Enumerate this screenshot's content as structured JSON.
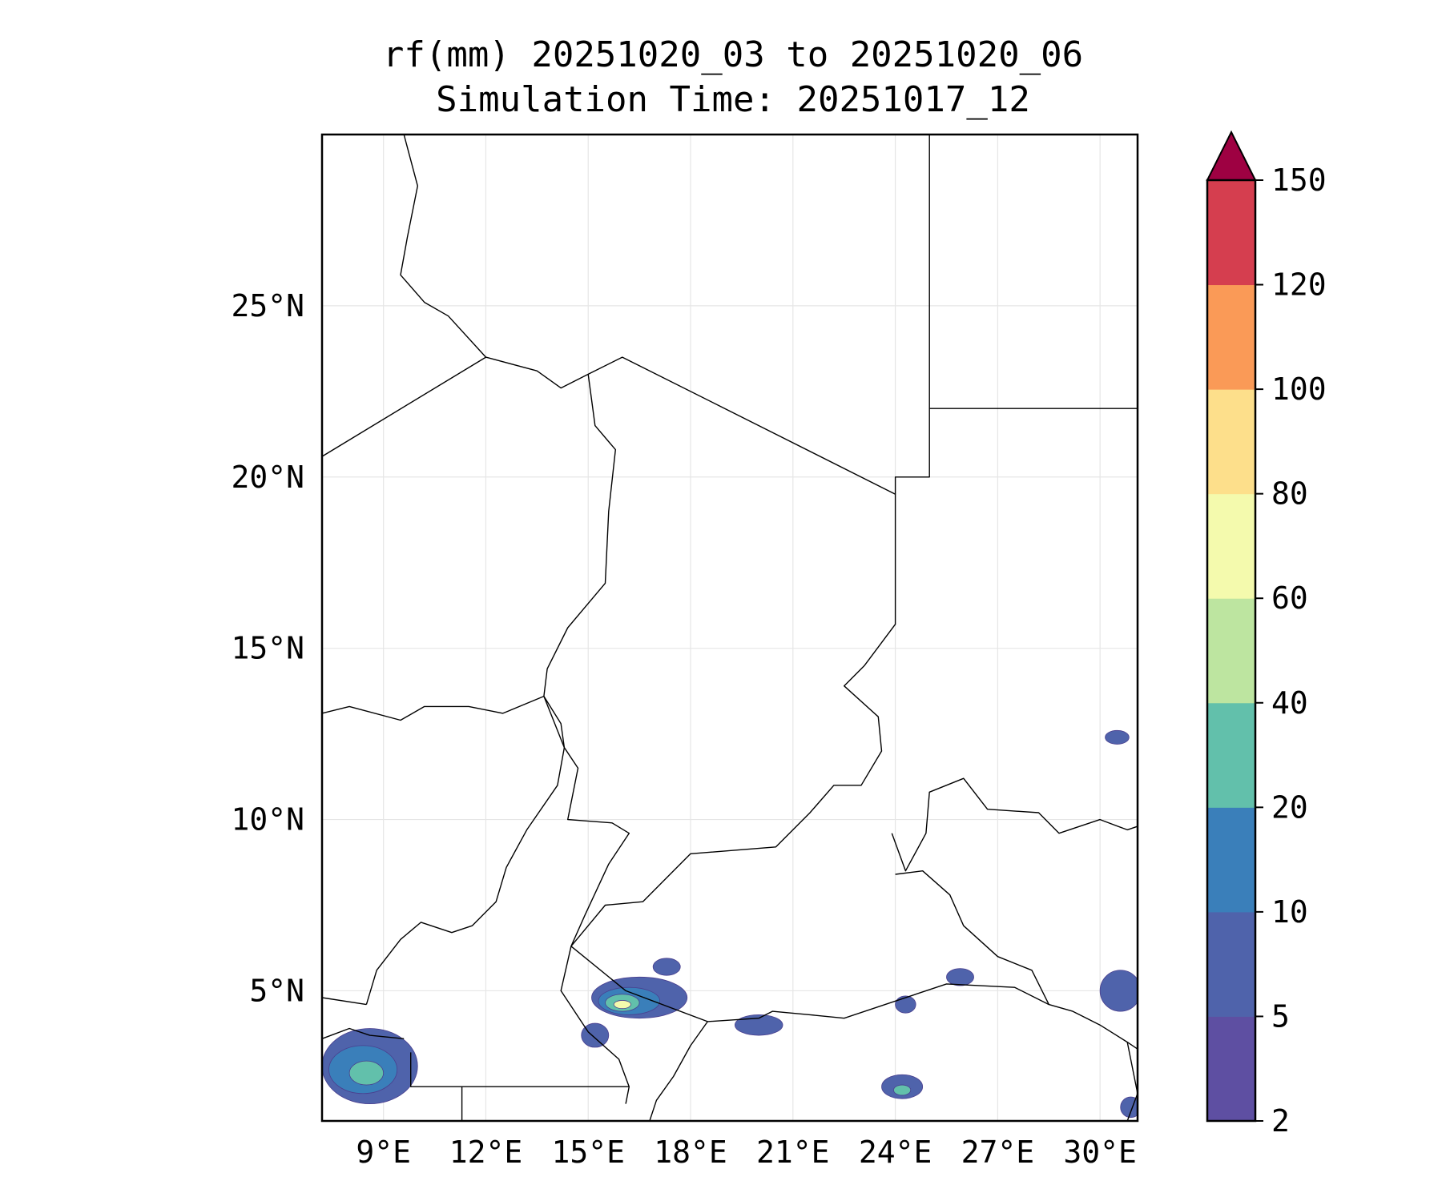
{
  "title": {
    "line1": "rf(mm) 20251020_03 to 20251020_06",
    "line2": "Simulation Time: 20251017_12"
  },
  "map": {
    "lon_range": [
      7.2,
      31.1
    ],
    "lat_range": [
      1.2,
      30.0
    ],
    "lon_ticks": [
      9,
      12,
      15,
      18,
      21,
      24,
      27,
      30
    ],
    "lon_tick_labels": [
      "9°E",
      "12°E",
      "15°E",
      "18°E",
      "21°E",
      "24°E",
      "27°E",
      "30°E"
    ],
    "lat_ticks": [
      5,
      10,
      15,
      20,
      25
    ],
    "lat_tick_labels": [
      "5°N",
      "10°N",
      "15°N",
      "20°N",
      "25°N"
    ],
    "grid": true,
    "borders": [
      [
        [
          9.6,
          30.0
        ],
        [
          10.0,
          28.5
        ],
        [
          9.7,
          27.0
        ],
        [
          9.5,
          25.9
        ],
        [
          10.2,
          25.1
        ],
        [
          10.9,
          24.7
        ],
        [
          12.0,
          23.5
        ],
        [
          13.5,
          23.1
        ],
        [
          14.2,
          22.6
        ],
        [
          15.0,
          23.0
        ],
        [
          16.0,
          23.5
        ],
        [
          20.0,
          21.5
        ],
        [
          24.0,
          19.5
        ],
        [
          24.0,
          15.7
        ],
        [
          23.1,
          14.5
        ],
        [
          22.5,
          13.9
        ],
        [
          23.5,
          13.0
        ],
        [
          23.6,
          12.0
        ],
        [
          23.0,
          11.0
        ],
        [
          22.2,
          11.0
        ],
        [
          21.5,
          10.2
        ],
        [
          20.5,
          9.2
        ],
        [
          18.0,
          9.0
        ],
        [
          16.6,
          7.6
        ],
        [
          15.5,
          7.5
        ],
        [
          14.5,
          6.3
        ],
        [
          14.2,
          5.0
        ],
        [
          15.0,
          3.8
        ],
        [
          15.9,
          3.0
        ],
        [
          16.2,
          2.2
        ],
        [
          16.1,
          1.7
        ]
      ],
      [
        [
          7.2,
          20.6
        ],
        [
          12.0,
          23.5
        ]
      ],
      [
        [
          15.0,
          23.0
        ],
        [
          15.2,
          21.5
        ],
        [
          15.8,
          20.8
        ],
        [
          15.6,
          19.0
        ],
        [
          15.5,
          16.9
        ],
        [
          14.4,
          15.6
        ],
        [
          13.8,
          14.4
        ],
        [
          13.7,
          13.6
        ],
        [
          14.2,
          12.8
        ],
        [
          14.3,
          12.1
        ],
        [
          14.7,
          11.5
        ],
        [
          14.4,
          10.0
        ],
        [
          15.7,
          9.9
        ],
        [
          16.2,
          9.6
        ],
        [
          15.6,
          8.7
        ],
        [
          14.9,
          7.2
        ],
        [
          14.5,
          6.3
        ]
      ],
      [
        [
          7.2,
          13.1
        ],
        [
          8.0,
          13.3
        ],
        [
          9.5,
          12.9
        ],
        [
          10.2,
          13.3
        ],
        [
          11.5,
          13.3
        ],
        [
          12.5,
          13.1
        ],
        [
          13.7,
          13.6
        ]
      ],
      [
        [
          13.7,
          13.6
        ],
        [
          14.3,
          12.1
        ],
        [
          14.1,
          11.0
        ],
        [
          13.2,
          9.7
        ],
        [
          12.6,
          8.6
        ],
        [
          12.3,
          7.6
        ],
        [
          11.6,
          6.9
        ],
        [
          11.0,
          6.7
        ],
        [
          10.1,
          7.0
        ],
        [
          9.5,
          6.5
        ],
        [
          8.8,
          5.6
        ],
        [
          8.5,
          4.6
        ]
      ],
      [
        [
          7.2,
          4.8
        ],
        [
          8.5,
          4.6
        ]
      ],
      [
        [
          9.8,
          3.2
        ],
        [
          9.8,
          2.2
        ],
        [
          11.3,
          2.2
        ],
        [
          11.3,
          1.2
        ]
      ],
      [
        [
          11.3,
          2.2
        ],
        [
          13.2,
          2.2
        ],
        [
          14.5,
          2.2
        ],
        [
          16.2,
          2.2
        ]
      ],
      [
        [
          14.5,
          6.3
        ],
        [
          16.1,
          5.0
        ],
        [
          18.5,
          4.1
        ],
        [
          20.0,
          4.2
        ],
        [
          20.4,
          4.4
        ],
        [
          21.5,
          4.3
        ],
        [
          22.5,
          4.2
        ],
        [
          24.0,
          4.7
        ],
        [
          25.5,
          5.2
        ],
        [
          27.5,
          5.1
        ],
        [
          28.5,
          4.6
        ],
        [
          29.2,
          4.4
        ],
        [
          30.0,
          4.0
        ],
        [
          30.8,
          3.5
        ],
        [
          31.1,
          3.3
        ]
      ],
      [
        [
          24.0,
          8.4
        ],
        [
          24.8,
          8.5
        ],
        [
          25.6,
          7.8
        ],
        [
          26.0,
          6.9
        ],
        [
          27.0,
          6.0
        ],
        [
          28.0,
          5.6
        ],
        [
          28.5,
          4.6
        ]
      ],
      [
        [
          23.9,
          9.6
        ],
        [
          24.3,
          8.5
        ],
        [
          24.9,
          9.6
        ],
        [
          25.0,
          10.8
        ],
        [
          26.0,
          11.2
        ],
        [
          26.7,
          10.3
        ],
        [
          28.2,
          10.2
        ],
        [
          28.8,
          9.6
        ],
        [
          30.0,
          10.0
        ],
        [
          30.8,
          9.7
        ],
        [
          31.1,
          9.8
        ]
      ],
      [
        [
          24.0,
          19.5
        ],
        [
          24.0,
          20.0
        ],
        [
          25.0,
          20.0
        ],
        [
          25.0,
          22.0
        ],
        [
          31.1,
          22.0
        ]
      ],
      [
        [
          25.0,
          22.0
        ],
        [
          25.0,
          30.0
        ]
      ],
      [
        [
          18.5,
          4.1
        ],
        [
          18.0,
          3.4
        ],
        [
          17.5,
          2.5
        ],
        [
          17.0,
          1.8
        ],
        [
          16.8,
          1.2
        ]
      ],
      [
        [
          30.8,
          3.5
        ],
        [
          31.1,
          2.0
        ],
        [
          30.8,
          1.2
        ]
      ],
      [
        [
          7.2,
          3.6
        ],
        [
          8.0,
          3.9
        ],
        [
          8.6,
          3.7
        ],
        [
          9.6,
          3.6
        ]
      ]
    ],
    "rain_patches": [
      {
        "lon": 16.5,
        "lat": 4.8,
        "rx": 1.4,
        "ry": 0.6,
        "level": 1
      },
      {
        "lon": 16.2,
        "lat": 4.7,
        "rx": 0.9,
        "ry": 0.4,
        "level": 2
      },
      {
        "lon": 16.0,
        "lat": 4.65,
        "rx": 0.5,
        "ry": 0.25,
        "level": 3
      },
      {
        "lon": 16.0,
        "lat": 4.6,
        "rx": 0.25,
        "ry": 0.12,
        "level": 5
      },
      {
        "lon": 15.2,
        "lat": 3.7,
        "rx": 0.4,
        "ry": 0.35,
        "level": 1
      },
      {
        "lon": 17.3,
        "lat": 5.7,
        "rx": 0.4,
        "ry": 0.25,
        "level": 1
      },
      {
        "lon": 20.0,
        "lat": 4.0,
        "rx": 0.7,
        "ry": 0.3,
        "level": 1
      },
      {
        "lon": 24.2,
        "lat": 2.2,
        "rx": 0.6,
        "ry": 0.35,
        "level": 1
      },
      {
        "lon": 24.2,
        "lat": 2.1,
        "rx": 0.25,
        "ry": 0.15,
        "level": 3
      },
      {
        "lon": 25.9,
        "lat": 5.4,
        "rx": 0.4,
        "ry": 0.25,
        "level": 1
      },
      {
        "lon": 30.6,
        "lat": 5.0,
        "rx": 0.6,
        "ry": 0.6,
        "level": 1
      },
      {
        "lon": 30.5,
        "lat": 12.4,
        "rx": 0.35,
        "ry": 0.2,
        "level": 1
      },
      {
        "lon": 24.3,
        "lat": 4.6,
        "rx": 0.3,
        "ry": 0.25,
        "level": 1
      },
      {
        "lon": 8.6,
        "lat": 2.8,
        "rx": 1.4,
        "ry": 1.1,
        "level": 1
      },
      {
        "lon": 8.4,
        "lat": 2.7,
        "rx": 1.0,
        "ry": 0.7,
        "level": 2
      },
      {
        "lon": 8.5,
        "lat": 2.6,
        "rx": 0.5,
        "ry": 0.35,
        "level": 3
      },
      {
        "lon": 30.9,
        "lat": 1.6,
        "rx": 0.3,
        "ry": 0.3,
        "level": 1
      }
    ]
  },
  "colorbar": {
    "levels": [
      2,
      5,
      10,
      20,
      40,
      60,
      80,
      100,
      120,
      150
    ],
    "tick_labels": [
      "2",
      "5",
      "10",
      "20",
      "40",
      "60",
      "80",
      "100",
      "120",
      "150"
    ],
    "colors": [
      "#5e4fa2",
      "#4f63ab",
      "#3a7fba",
      "#62c0ab",
      "#bde5a0",
      "#f4faad",
      "#fddf8b",
      "#fa9a57",
      "#d53e4f"
    ],
    "extend_color": "#9e0142",
    "extend": "max"
  }
}
